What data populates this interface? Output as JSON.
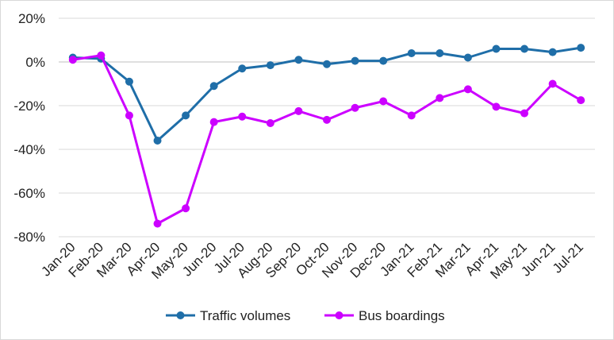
{
  "chart_data": {
    "type": "line",
    "title": "",
    "xlabel": "",
    "ylabel": "",
    "categories": [
      "Jan-20",
      "Feb-20",
      "Mar-20",
      "Apr-20",
      "May-20",
      "Jun-20",
      "Jul-20",
      "Aug-20",
      "Sep-20",
      "Oct-20",
      "Nov-20",
      "Dec-20",
      "Jan-21",
      "Feb-21",
      "Mar-21",
      "Apr-21",
      "May-21",
      "Jun-21",
      "Jul-21"
    ],
    "ylim": [
      -80,
      20
    ],
    "yticks": [
      20,
      0,
      -20,
      -40,
      -60,
      -80
    ],
    "ytick_labels": [
      "20%",
      "0%",
      "-20%",
      "-40%",
      "-60%",
      "-80%"
    ],
    "grid": true,
    "legend_position": "bottom",
    "series": [
      {
        "name": "Traffic volumes",
        "color": "#1f6ea8",
        "values": [
          2,
          1.5,
          -9,
          -36,
          -24.5,
          -11,
          -3,
          -1.5,
          1,
          -1,
          0.5,
          0.5,
          4,
          4,
          2,
          6,
          6,
          4.5,
          6.5
        ]
      },
      {
        "name": "Bus boardings",
        "color": "#cc00ff",
        "values": [
          1,
          3,
          -24.5,
          -74,
          -67,
          -27.5,
          -25,
          -28,
          -22.5,
          -26.5,
          -21,
          -18,
          -24.5,
          -16.5,
          -12.5,
          -20.5,
          -23.5,
          -10,
          -17.5
        ]
      }
    ]
  }
}
